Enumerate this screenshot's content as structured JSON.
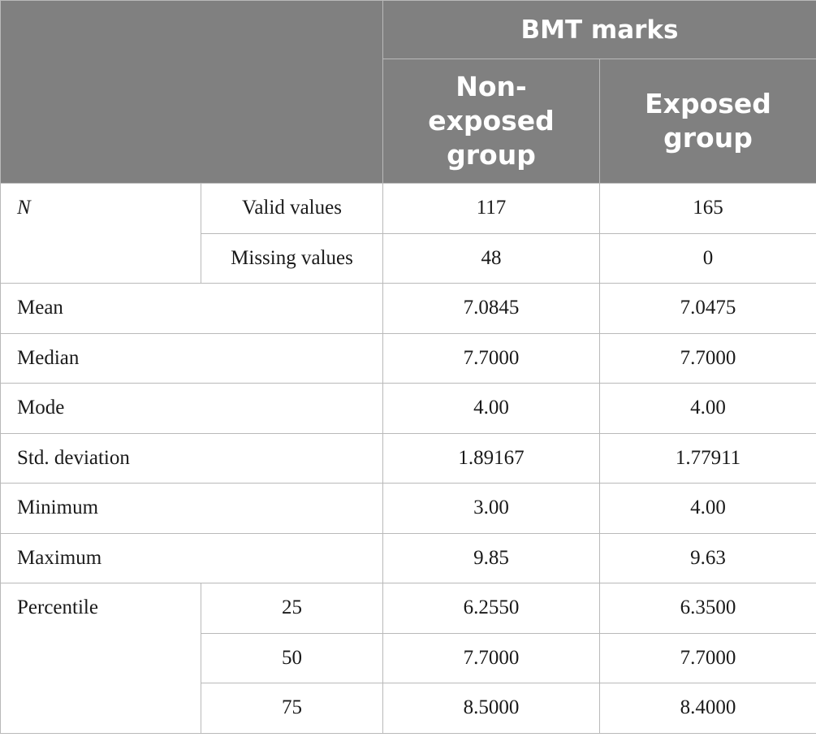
{
  "header": {
    "group_title": "BMT marks",
    "col_non_exposed": "Non-exposed group",
    "col_exposed": "Exposed group"
  },
  "rows": {
    "n_label": "N",
    "valid": {
      "label": "Valid values",
      "non_exposed": "117",
      "exposed": "165"
    },
    "missing": {
      "label": "Missing values",
      "non_exposed": "48",
      "exposed": "0"
    },
    "mean": {
      "label": "Mean",
      "non_exposed": "7.0845",
      "exposed": "7.0475"
    },
    "median": {
      "label": "Median",
      "non_exposed": "7.7000",
      "exposed": "7.7000"
    },
    "mode": {
      "label": "Mode",
      "non_exposed": "4.00",
      "exposed": "4.00"
    },
    "std": {
      "label": "Std. deviation",
      "non_exposed": "1.89167",
      "exposed": "1.77911"
    },
    "min": {
      "label": "Minimum",
      "non_exposed": "3.00",
      "exposed": "4.00"
    },
    "max": {
      "label": "Maximum",
      "non_exposed": "9.85",
      "exposed": "9.63"
    },
    "percentile_label": "Percentile",
    "p25": {
      "label": "25",
      "non_exposed": "6.2550",
      "exposed": "6.3500"
    },
    "p50": {
      "label": "50",
      "non_exposed": "7.7000",
      "exposed": "7.7000"
    },
    "p75": {
      "label": "75",
      "non_exposed": "8.5000",
      "exposed": "8.4000"
    }
  }
}
